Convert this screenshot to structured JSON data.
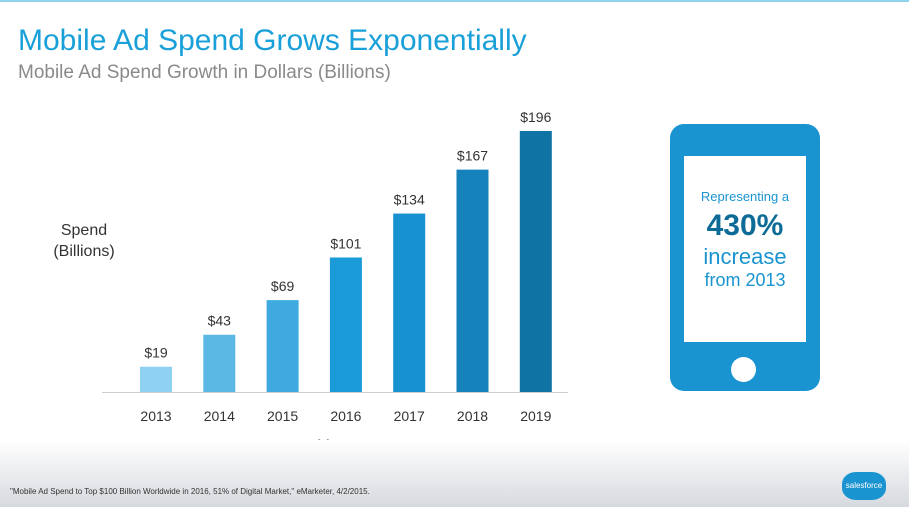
{
  "slide": {
    "title": "Mobile Ad Spend Grows Exponentially",
    "subtitle": "Mobile Ad Spend Growth in Dollars (Billions)",
    "footnote": "\"Mobile Ad Spend to Top $100 Billion Worldwide in 2016, 51% of Digital Market,\" eMarketer, 4/2/2015.",
    "logo_text": "salesforce"
  },
  "callout": {
    "line1": "Representing a",
    "line2": "430%",
    "line3": "increase",
    "line4": "from 2013"
  },
  "chart_data": {
    "type": "bar",
    "categories": [
      "2013",
      "2014",
      "2015",
      "2016",
      "2017",
      "2018",
      "2019"
    ],
    "values": [
      19,
      43,
      69,
      101,
      134,
      167,
      196
    ],
    "data_labels": [
      "$19",
      "$43",
      "$69",
      "$101",
      "$134",
      "$167",
      "$196"
    ],
    "ylabel_lines": [
      "Spend",
      "(Billions)"
    ],
    "xlabel": "Year",
    "ylim": [
      0,
      196
    ],
    "bar_colors": [
      "#8ed1f0",
      "#5bb7e3",
      "#3eaadf",
      "#1b9ad8",
      "#1791cf",
      "#1582bb",
      "#0f73a3"
    ],
    "grid": false
  }
}
